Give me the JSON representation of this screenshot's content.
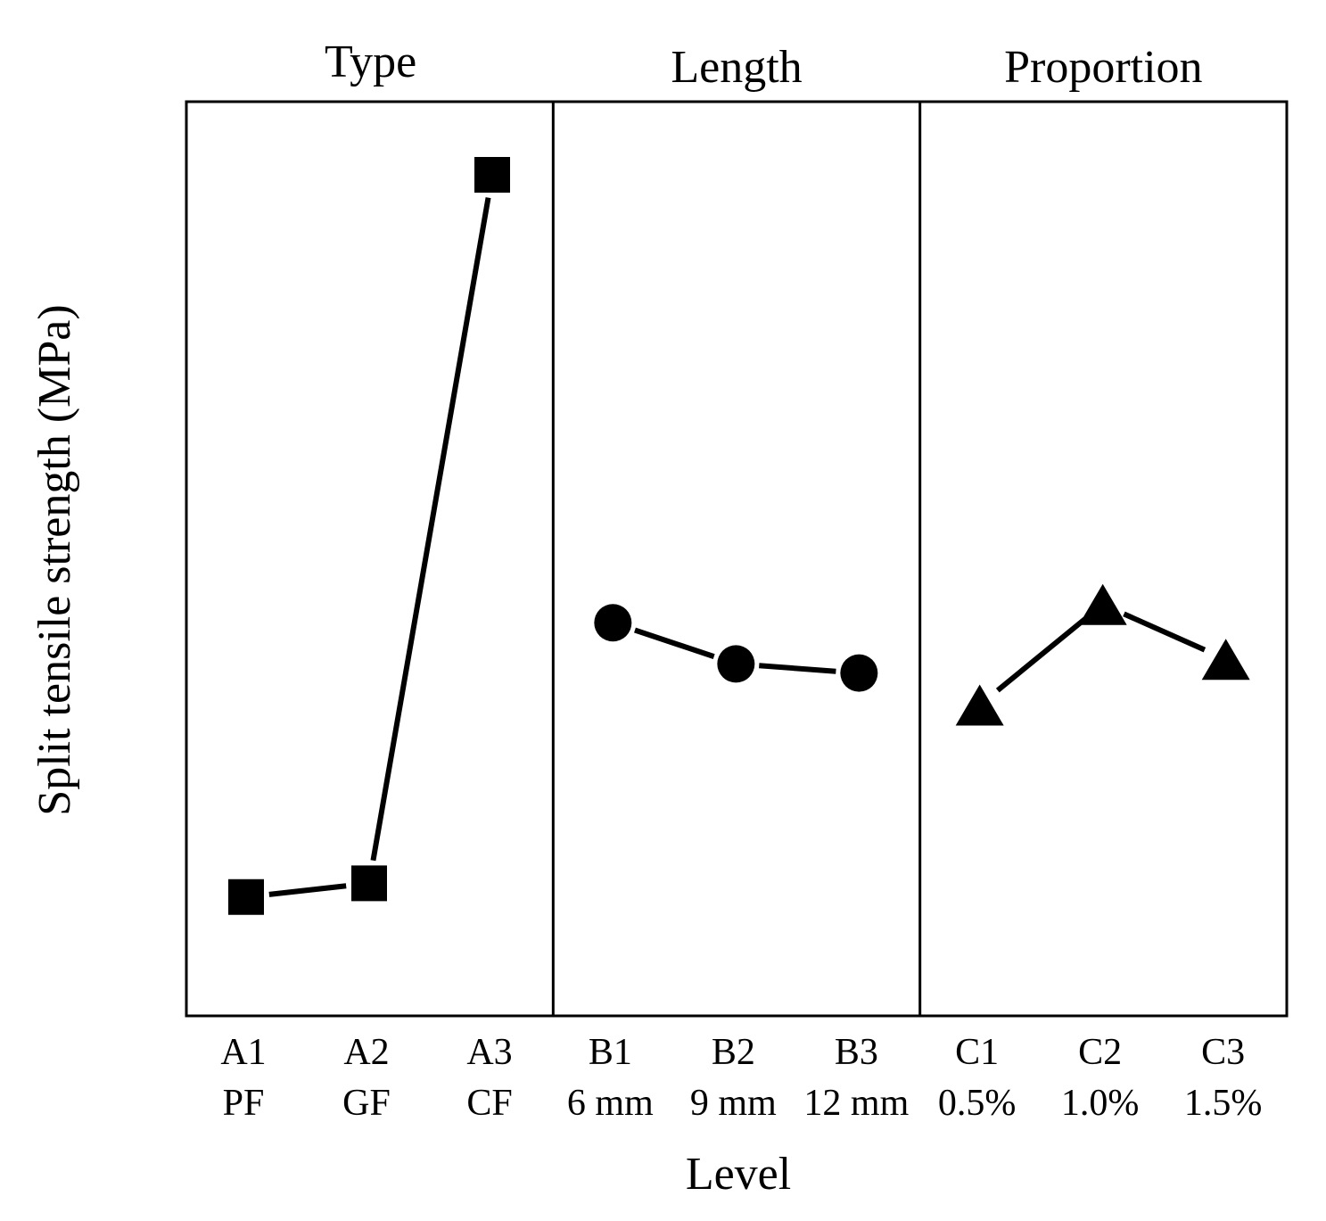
{
  "chart_data": {
    "type": "line",
    "title": "",
    "xlabel": "Level",
    "ylabel": "Split tensile strength (MPa)",
    "ylim": [
      0,
      100
    ],
    "grid": false,
    "yticks_shown": false,
    "note": "Main effects plot; y-axis has no numeric tick labels, values are relative estimates on a 0-100 scale",
    "panels": [
      {
        "title": "Type",
        "marker": "square",
        "color": "#000000",
        "levels": [
          {
            "code": "A1",
            "label": "PF",
            "value": 13
          },
          {
            "code": "A2",
            "label": "GF",
            "value": 14.5
          },
          {
            "code": "A3",
            "label": "CF",
            "value": 92
          }
        ]
      },
      {
        "title": "Length",
        "marker": "circle",
        "color": "#000000",
        "levels": [
          {
            "code": "B1",
            "label": "6 mm",
            "value": 43
          },
          {
            "code": "B2",
            "label": "9 mm",
            "value": 38.5
          },
          {
            "code": "B3",
            "label": "12 mm",
            "value": 37.5
          }
        ]
      },
      {
        "title": "Proportion",
        "marker": "triangle",
        "color": "#000000",
        "levels": [
          {
            "code": "C1",
            "label": "0.5%",
            "value": 34
          },
          {
            "code": "C2",
            "label": "1.0%",
            "value": 45
          },
          {
            "code": "C3",
            "label": "1.5%",
            "value": 39
          }
        ]
      }
    ]
  }
}
